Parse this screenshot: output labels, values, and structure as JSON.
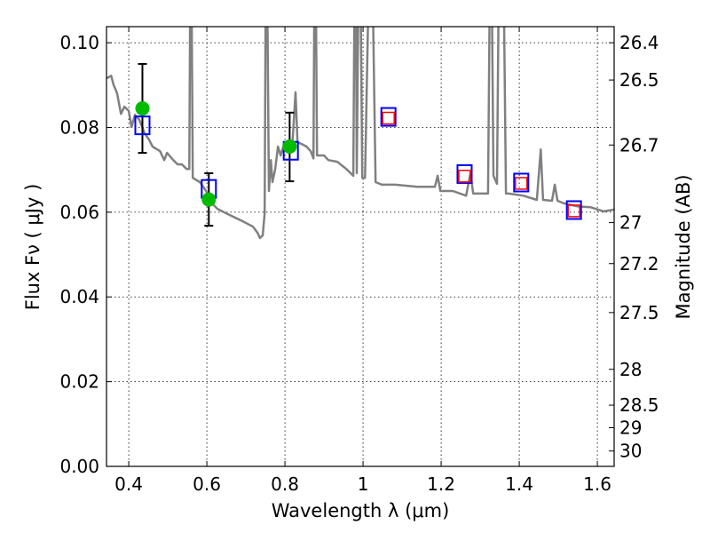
{
  "chart_data": {
    "type": "line",
    "xlabel": "Wavelength  λ (μm)",
    "ylabel": "Flux  Fν  ( μJy )",
    "ylabel_right": "Magnitude (AB)",
    "xlim": [
      0.343,
      1.643
    ],
    "ylim": [
      0.0,
      0.1038
    ],
    "grid": true,
    "x_ticks": [
      0.4,
      0.6,
      0.8,
      1.0,
      1.2,
      1.4,
      1.6
    ],
    "x_tick_labels": [
      "0.4",
      "0.6",
      "0.8",
      "1",
      "1.2",
      "1.4",
      "1.6"
    ],
    "y_ticks": [
      0.0,
      0.02,
      0.04,
      0.06,
      0.08,
      0.1
    ],
    "y_tick_labels": [
      "0.00",
      "0.02",
      "0.04",
      "0.06",
      "0.08",
      "0.10"
    ],
    "mag_ticks": [
      26.4,
      26.5,
      26.7,
      27,
      27.2,
      27.5,
      28,
      28.5,
      29,
      30
    ],
    "mag_tick_labels": [
      "26.4",
      "26.5",
      "26.7",
      "27",
      "27.2",
      "27.5",
      "28",
      "28.5",
      "29",
      "30"
    ],
    "colors": {
      "spectrum": "#808080",
      "observed": "#00bb00",
      "model": "#0000ff",
      "model_inner": "#ff0000"
    },
    "spectrum": [
      [
        0.343,
        0.0916
      ],
      [
        0.355,
        0.0922
      ],
      [
        0.361,
        0.0901
      ],
      [
        0.37,
        0.0881
      ],
      [
        0.38,
        0.0832
      ],
      [
        0.389,
        0.0849
      ],
      [
        0.4,
        0.0839
      ],
      [
        0.407,
        0.0801
      ],
      [
        0.416,
        0.083
      ],
      [
        0.427,
        0.0818
      ],
      [
        0.441,
        0.0786
      ],
      [
        0.452,
        0.0771
      ],
      [
        0.461,
        0.0755
      ],
      [
        0.48,
        0.0744
      ],
      [
        0.491,
        0.0723
      ],
      [
        0.498,
        0.074
      ],
      [
        0.514,
        0.0723
      ],
      [
        0.525,
        0.0713
      ],
      [
        0.536,
        0.0713
      ],
      [
        0.548,
        0.0702
      ],
      [
        0.555,
        0.0702
      ],
      [
        0.559,
        0.14
      ],
      [
        0.564,
        0.0681
      ],
      [
        0.582,
        0.0671
      ],
      [
        0.598,
        0.065
      ],
      [
        0.611,
        0.0623
      ],
      [
        0.627,
        0.0608
      ],
      [
        0.65,
        0.0597
      ],
      [
        0.673,
        0.0587
      ],
      [
        0.695,
        0.0577
      ],
      [
        0.718,
        0.0566
      ],
      [
        0.73,
        0.0551
      ],
      [
        0.736,
        0.0539
      ],
      [
        0.743,
        0.0545
      ],
      [
        0.748,
        0.0597
      ],
      [
        0.752,
        0.14
      ],
      [
        0.759,
        0.065
      ],
      [
        0.764,
        0.0723
      ],
      [
        0.768,
        0.0671
      ],
      [
        0.775,
        0.0702
      ],
      [
        0.782,
        0.0755
      ],
      [
        0.789,
        0.0734
      ],
      [
        0.798,
        0.0761
      ],
      [
        0.805,
        0.0765
      ],
      [
        0.816,
        0.0744
      ],
      [
        0.82,
        0.0776
      ],
      [
        0.827,
        0.0883
      ],
      [
        0.832,
        0.0765
      ],
      [
        0.843,
        0.0761
      ],
      [
        0.855,
        0.0755
      ],
      [
        0.866,
        0.0744
      ],
      [
        0.873,
        0.0727
      ],
      [
        0.877,
        0.14
      ],
      [
        0.882,
        0.0734
      ],
      [
        0.889,
        0.0734
      ],
      [
        0.9,
        0.0734
      ],
      [
        0.911,
        0.0723
      ],
      [
        0.934,
        0.0719
      ],
      [
        0.957,
        0.0702
      ],
      [
        0.975,
        0.0686
      ],
      [
        0.98,
        0.14
      ],
      [
        0.984,
        0.0692
      ],
      [
        0.991,
        0.14
      ],
      [
        0.998,
        0.0681
      ],
      [
        1.005,
        0.0681
      ],
      [
        1.02,
        0.14
      ],
      [
        1.032,
        0.0671
      ],
      [
        1.048,
        0.0665
      ],
      [
        1.082,
        0.0665
      ],
      [
        1.139,
        0.066
      ],
      [
        1.184,
        0.066
      ],
      [
        1.191,
        0.0686
      ],
      [
        1.198,
        0.065
      ],
      [
        1.23,
        0.065
      ],
      [
        1.264,
        0.0639
      ],
      [
        1.275,
        0.0692
      ],
      [
        1.282,
        0.0644
      ],
      [
        1.32,
        0.0644
      ],
      [
        1.327,
        0.14
      ],
      [
        1.334,
        0.0686
      ],
      [
        1.343,
        0.0667
      ],
      [
        1.35,
        0.14
      ],
      [
        1.357,
        0.14
      ],
      [
        1.366,
        0.0644
      ],
      [
        1.373,
        0.0644
      ],
      [
        1.411,
        0.0639
      ],
      [
        1.445,
        0.0629
      ],
      [
        1.455,
        0.0748
      ],
      [
        1.461,
        0.0629
      ],
      [
        1.484,
        0.0627
      ],
      [
        1.491,
        0.0665
      ],
      [
        1.498,
        0.0627
      ],
      [
        1.514,
        0.0621
      ],
      [
        1.548,
        0.0614
      ],
      [
        1.582,
        0.0612
      ],
      [
        1.616,
        0.0602
      ],
      [
        1.643,
        0.0606
      ]
    ],
    "observed": [
      {
        "x": 0.435,
        "y": 0.0845,
        "ylo": 0.074,
        "yhi": 0.095
      },
      {
        "x": 0.605,
        "y": 0.063,
        "ylo": 0.0568,
        "yhi": 0.0692
      },
      {
        "x": 0.812,
        "y": 0.0755,
        "ylo": 0.0673,
        "yhi": 0.0835
      }
    ],
    "model_blue": [
      [
        0.435,
        0.0805
      ],
      [
        0.605,
        0.0655
      ],
      [
        0.815,
        0.0745
      ],
      [
        1.065,
        0.0825
      ],
      [
        1.26,
        0.069
      ],
      [
        1.405,
        0.067
      ],
      [
        1.54,
        0.0605
      ]
    ],
    "model_red": [
      [
        1.065,
        0.0822
      ],
      [
        1.26,
        0.0685
      ],
      [
        1.405,
        0.0668
      ],
      [
        1.54,
        0.0603
      ]
    ]
  }
}
